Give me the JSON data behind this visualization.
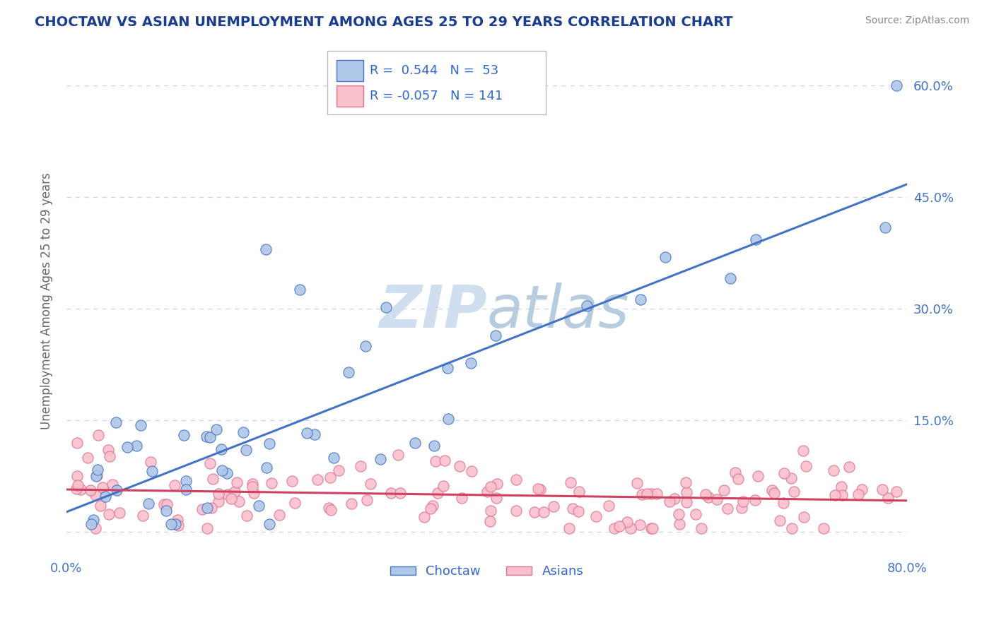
{
  "title": "CHOCTAW VS ASIAN UNEMPLOYMENT AMONG AGES 25 TO 29 YEARS CORRELATION CHART",
  "source": "Source: ZipAtlas.com",
  "ylabel": "Unemployment Among Ages 25 to 29 years",
  "xlim": [
    0.0,
    0.8
  ],
  "ylim": [
    -0.03,
    0.65
  ],
  "ytick_positions": [
    0.0,
    0.15,
    0.3,
    0.45,
    0.6
  ],
  "ytick_labels": [
    "",
    "15.0%",
    "30.0%",
    "45.0%",
    "60.0%"
  ],
  "xtick_positions": [
    0.0,
    0.2,
    0.4,
    0.6,
    0.8
  ],
  "xtick_labels": [
    "0.0%",
    "",
    "",
    "",
    "80.0%"
  ],
  "choctaw_R": 0.544,
  "choctaw_N": 53,
  "asian_R": -0.057,
  "asian_N": 141,
  "choctaw_dot_color": "#aec6e8",
  "choctaw_edge_color": "#4472c4",
  "asian_dot_color": "#f9c0cc",
  "asian_edge_color": "#e07090",
  "choctaw_line_color": "#4472c4",
  "asian_line_color": "#d04060",
  "watermark_color": "#d0dff0",
  "background_color": "#ffffff",
  "grid_color": "#c8d4e8",
  "title_color": "#1a3d8f",
  "label_color": "#4472c4",
  "ylabel_color": "#666666",
  "source_color": "#888888",
  "legend_text_color": "#3366cc"
}
